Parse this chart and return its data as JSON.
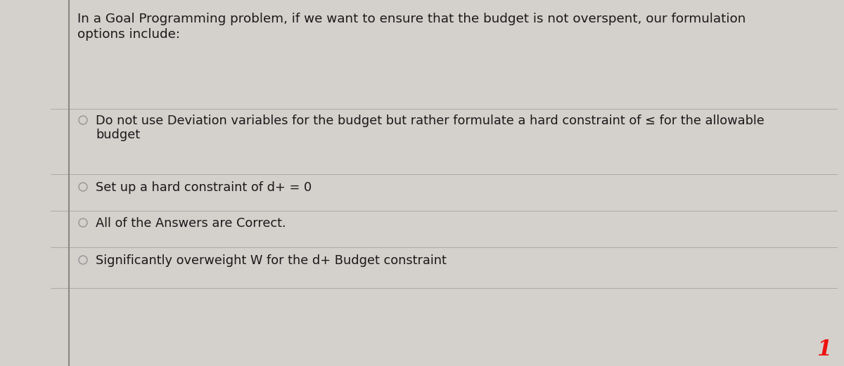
{
  "bg_color": "#d4d0cc",
  "left_line_color": "#888880",
  "line_color": "#aaaaaa",
  "question_text_line1": "In a Goal Programming problem, if we want to ensure that the budget is not overspent, our formulation",
  "question_text_line2": "options include:",
  "option1_line1": "Do not use Deviation variables for the budget but rather formulate a hard constraint of ≤ for the allowable",
  "option1_line2": "budget",
  "option2": "Set up a hard constraint of d+ = 0",
  "option3": "All of the Answers are Correct.",
  "option4": "Significantly overweight W for the d+ Budget constraint",
  "page_number": "1",
  "page_number_color": "#ee1111",
  "text_color": "#1a1a1a",
  "font_size_question": 13.2,
  "font_size_options": 12.8,
  "font_size_page": 22,
  "circle_color": "#999999",
  "figwidth": 12.0,
  "figheight": 5.21,
  "dpi": 100
}
